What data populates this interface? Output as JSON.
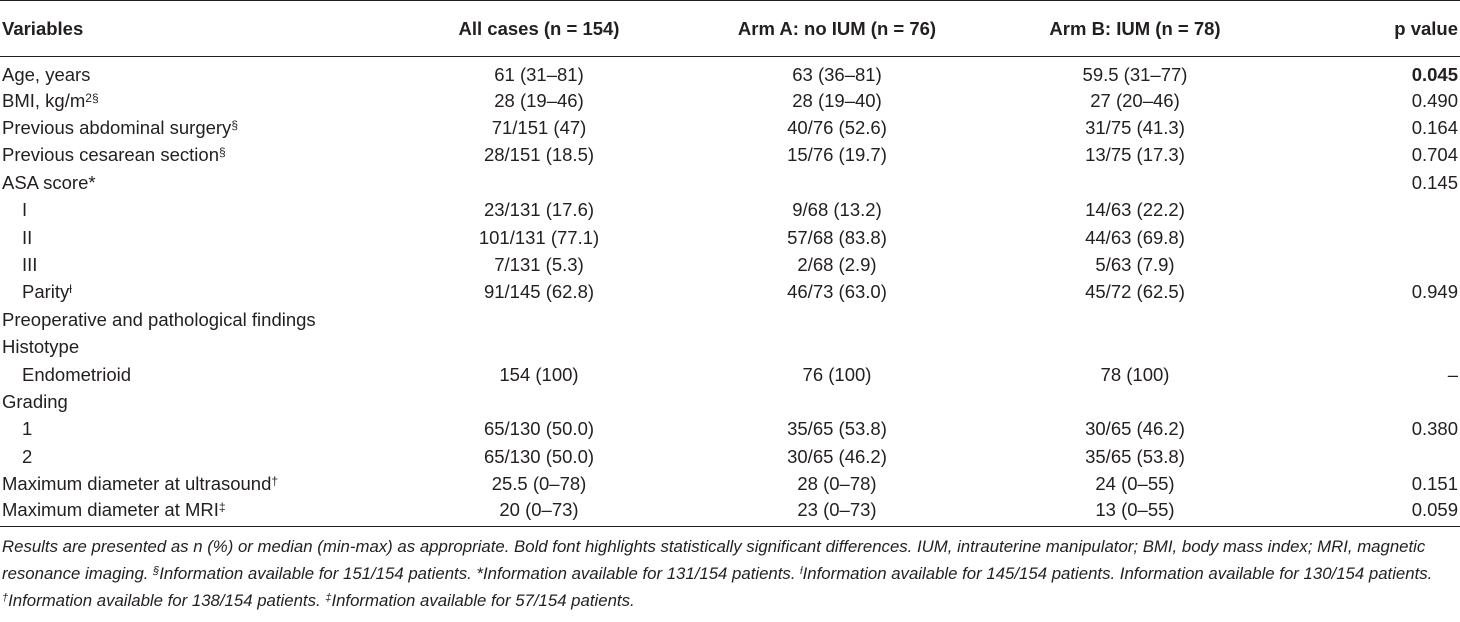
{
  "table": {
    "headers": [
      "Variables",
      "All cases (n = 154)",
      "Arm A: no IUM (n = 76)",
      "Arm B: IUM (n = 78)",
      "p value"
    ],
    "rows": [
      {
        "label": "Age, years",
        "sup": "",
        "indent": false,
        "all": "61 (31–81)",
        "armA": "63 (36–81)",
        "armB": "59.5 (31–77)",
        "p": "0.045",
        "bold_p": true
      },
      {
        "label": "BMI, kg/m",
        "sup": "2§",
        "indent": false,
        "all": "28 (19–46)",
        "armA": "28 (19–40)",
        "armB": "27 (20–46)",
        "p": "0.490",
        "bold_p": false
      },
      {
        "label": "Previous abdominal surgery",
        "sup": "§",
        "indent": false,
        "all": "71/151 (47)",
        "armA": "40/76 (52.6)",
        "armB": "31/75 (41.3)",
        "p": "0.164",
        "bold_p": false
      },
      {
        "label": "Previous cesarean section",
        "sup": "§",
        "indent": false,
        "all": "28/151 (18.5)",
        "armA": "15/76 (19.7)",
        "armB": "13/75 (17.3)",
        "p": "0.704",
        "bold_p": false
      },
      {
        "label": "ASA score*",
        "sup": "",
        "indent": false,
        "all": "",
        "armA": "",
        "armB": "",
        "p": "0.145",
        "bold_p": false
      },
      {
        "label": "I",
        "sup": "",
        "indent": true,
        "all": "23/131 (17.6)",
        "armA": "9/68 (13.2)",
        "armB": "14/63 (22.2)",
        "p": "",
        "bold_p": false
      },
      {
        "label": "II",
        "sup": "",
        "indent": true,
        "all": "101/131 (77.1)",
        "armA": "57/68 (83.8)",
        "armB": "44/63 (69.8)",
        "p": "",
        "bold_p": false
      },
      {
        "label": "III",
        "sup": "",
        "indent": true,
        "all": "7/131 (5.3)",
        "armA": "2/68 (2.9)",
        "armB": "5/63 (7.9)",
        "p": "",
        "bold_p": false
      },
      {
        "label": "Parity",
        "sup": "ƚ",
        "indent": true,
        "all": "91/145 (62.8)",
        "armA": "46/73 (63.0)",
        "armB": "45/72 (62.5)",
        "p": "0.949",
        "bold_p": false
      },
      {
        "label": "Preoperative and pathological findings",
        "sup": "",
        "indent": false,
        "all": "",
        "armA": "",
        "armB": "",
        "p": "",
        "bold_p": false
      },
      {
        "label": "Histotype",
        "sup": "",
        "indent": false,
        "all": "",
        "armA": "",
        "armB": "",
        "p": "",
        "bold_p": false
      },
      {
        "label": "Endometrioid",
        "sup": "",
        "indent": true,
        "all": "154 (100)",
        "armA": "76 (100)",
        "armB": "78 (100)",
        "p": "–",
        "bold_p": false
      },
      {
        "label": "Grading",
        "sup": "",
        "indent": false,
        "all": "",
        "armA": "",
        "armB": "",
        "p": "",
        "bold_p": false
      },
      {
        "label": "1",
        "sup": "",
        "indent": true,
        "all": "65/130 (50.0)",
        "armA": "35/65 (53.8)",
        "armB": "30/65 (46.2)",
        "p": "0.380",
        "bold_p": false
      },
      {
        "label": "2",
        "sup": "",
        "indent": true,
        "all": "65/130 (50.0)",
        "armA": "30/65 (46.2)",
        "armB": "35/65 (53.8)",
        "p": "",
        "bold_p": false
      },
      {
        "label": "Maximum diameter at ultrasound",
        "sup": "†",
        "indent": false,
        "all": "25.5 (0–78)",
        "armA": "28 (0–78)",
        "armB": "24 (0–55)",
        "p": "0.151",
        "bold_p": false
      },
      {
        "label": "Maximum diameter at MRI",
        "sup": "‡",
        "indent": false,
        "all": "20 (0–73)",
        "armA": "23 (0–73)",
        "armB": "13 (0–55)",
        "p": "0.059",
        "bold_p": false
      }
    ]
  },
  "footnote": {
    "text1": "Results are presented as n (%) or median (min-max) as appropriate. Bold font highlights statistically significant differences. IUM, intrauterine manipulator; BMI, body mass index; MRI, magnetic resonance imaging. ",
    "sup1": "§",
    "text2": "Information available for 151/154 patients. *Information available for 131/154 patients. ",
    "sup2": "ƚ",
    "text3": "Information available for 145/154 patients. Information available for 130/154 patients. ",
    "sup3": "†",
    "text4": "Information available for 138/154 patients. ",
    "sup4": "‡",
    "text5": "Information available for 57/154 patients."
  }
}
